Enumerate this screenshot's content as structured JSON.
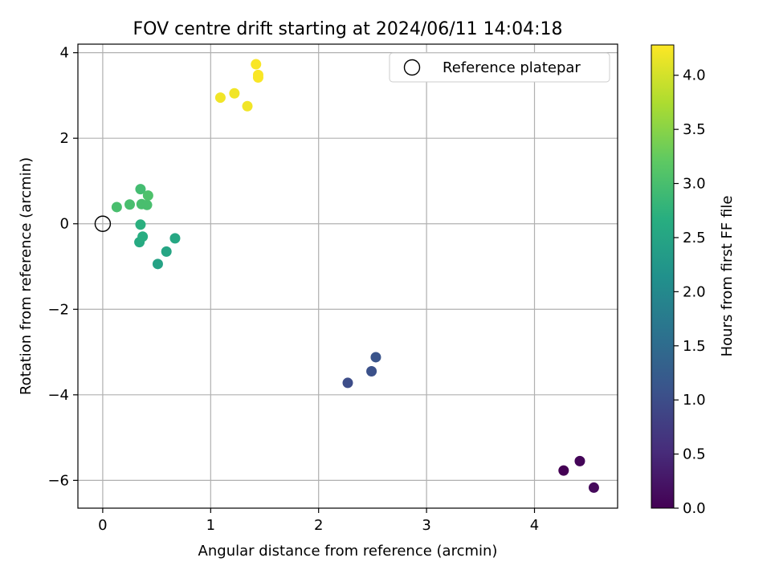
{
  "chart_data": {
    "type": "scatter",
    "title": "FOV centre drift starting at 2024/06/11 14:04:18",
    "xlabel": "Angular distance from reference (arcmin)",
    "ylabel": "Rotation from reference (arcmin)",
    "xlim": [
      -0.23,
      4.77
    ],
    "ylim": [
      -6.65,
      4.2
    ],
    "xticks": [
      0,
      1,
      2,
      3,
      4
    ],
    "xtick_labels": [
      "0",
      "1",
      "2",
      "3",
      "4"
    ],
    "yticks": [
      4,
      2,
      0,
      -2,
      -4,
      -6
    ],
    "ytick_labels": [
      "4",
      "2",
      "0",
      "−2",
      "−4",
      "−6"
    ],
    "grid": true,
    "legend": {
      "position": "top-right",
      "entries": [
        {
          "label": "Reference platepar",
          "marker": "open-circle"
        }
      ]
    },
    "reference_point": {
      "x": 0,
      "y": 0
    },
    "colorbar": {
      "label": "Hours from first FF file",
      "colormap": "viridis",
      "range": [
        0.0,
        4.28
      ],
      "ticks": [
        0.0,
        0.5,
        1.0,
        1.5,
        2.0,
        2.5,
        3.0,
        3.5,
        4.0
      ],
      "tick_labels": [
        "0.0",
        "0.5",
        "1.0",
        "1.5",
        "2.0",
        "2.5",
        "3.0",
        "3.5",
        "4.0"
      ]
    },
    "points": [
      {
        "x": 4.27,
        "y": -5.77,
        "h": 0.0
      },
      {
        "x": 4.42,
        "y": -5.55,
        "h": 0.05
      },
      {
        "x": 4.55,
        "y": -6.17,
        "h": 0.1
      },
      {
        "x": 2.27,
        "y": -3.72,
        "h": 1.0
      },
      {
        "x": 2.49,
        "y": -3.45,
        "h": 1.05
      },
      {
        "x": 2.53,
        "y": -3.12,
        "h": 1.1
      },
      {
        "x": 0.51,
        "y": -0.94,
        "h": 2.45
      },
      {
        "x": 0.59,
        "y": -0.65,
        "h": 2.5
      },
      {
        "x": 0.67,
        "y": -0.34,
        "h": 2.55
      },
      {
        "x": 0.34,
        "y": -0.43,
        "h": 2.6
      },
      {
        "x": 0.37,
        "y": -0.3,
        "h": 2.65
      },
      {
        "x": 0.35,
        "y": -0.02,
        "h": 2.7
      },
      {
        "x": 0.13,
        "y": 0.39,
        "h": 3.0
      },
      {
        "x": 0.25,
        "y": 0.45,
        "h": 3.0
      },
      {
        "x": 0.36,
        "y": 0.46,
        "h": 3.0
      },
      {
        "x": 0.41,
        "y": 0.44,
        "h": 3.0
      },
      {
        "x": 0.35,
        "y": 0.81,
        "h": 2.95
      },
      {
        "x": 0.42,
        "y": 0.66,
        "h": 3.05
      },
      {
        "x": 1.09,
        "y": 2.95,
        "h": 4.2
      },
      {
        "x": 1.22,
        "y": 3.05,
        "h": 4.2
      },
      {
        "x": 1.34,
        "y": 2.75,
        "h": 4.2
      },
      {
        "x": 1.42,
        "y": 3.73,
        "h": 4.25
      },
      {
        "x": 1.44,
        "y": 3.48,
        "h": 4.25
      },
      {
        "x": 1.44,
        "y": 3.42,
        "h": 4.25
      }
    ]
  }
}
